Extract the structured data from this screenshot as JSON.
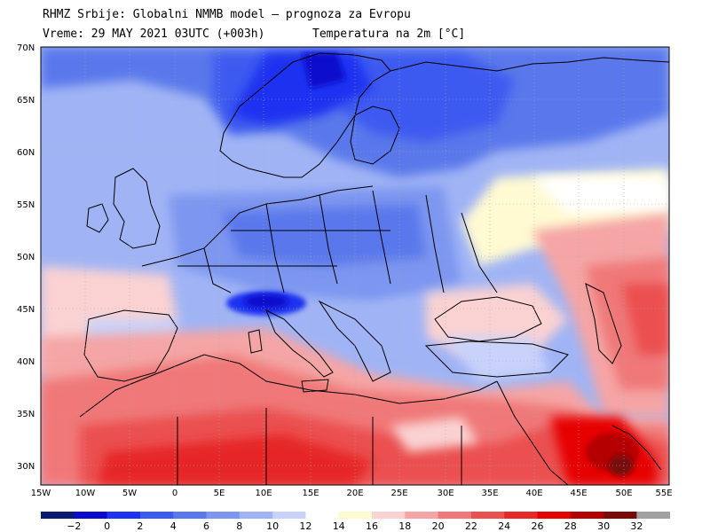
{
  "header": {
    "line1": "RHMZ Srbije: Globalni NMMB model — prognoza za Evropu",
    "line2_left": "Vreme: 29 MAY 2021 03UTC (+003h)",
    "line2_right": "Temperatura na 2m [°C]"
  },
  "axes": {
    "lat_labels": [
      "70N",
      "65N",
      "60N",
      "55N",
      "50N",
      "45N",
      "40N",
      "35N",
      "30N"
    ],
    "lon_labels": [
      "15W",
      "10W",
      "5W",
      "0",
      "5E",
      "10E",
      "15E",
      "20E",
      "25E",
      "30E",
      "35E",
      "40E",
      "45E",
      "50E",
      "55E"
    ]
  },
  "colorbar": {
    "labels": [
      "−2",
      "0",
      "2",
      "4",
      "6",
      "8",
      "10",
      "12",
      "14",
      "16",
      "18",
      "20",
      "22",
      "24",
      "26",
      "28",
      "30",
      "32"
    ],
    "colors": [
      "#0a1a6e",
      "#0a0acd",
      "#1e32f0",
      "#3c5af0",
      "#5a78eb",
      "#7d96f0",
      "#a0b4f5",
      "#c8d2fa",
      "#ffffff",
      "#fffad2",
      "#fad2d2",
      "#f5a5a5",
      "#f07878",
      "#eb5050",
      "#e62828",
      "#e60000",
      "#b40000",
      "#780a0a",
      "#a0a0a0"
    ]
  },
  "map_colors": {
    "ocean": "#c8d2fa",
    "land_north": "#7d96f0",
    "cold_core": "#1e32f0",
    "alps": "#0a0acd",
    "warm_south": "#f07878",
    "hot_africa": "#e62828",
    "very_hot": "#b40000",
    "hottest": "#780a0a",
    "mild": "#fad2d2",
    "neutral": "#fffad2",
    "border": "#000000"
  }
}
